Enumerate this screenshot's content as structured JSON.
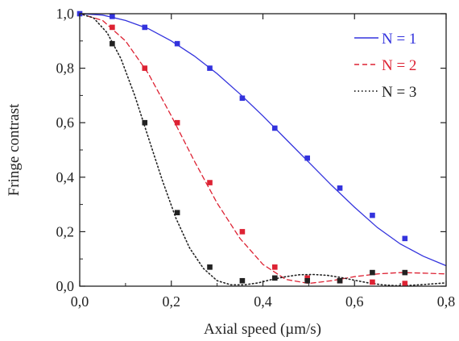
{
  "chart_data": {
    "type": "line",
    "xlabel": "Axial speed (µm/s)",
    "ylabel": "Fringe contrast",
    "xlim": [
      0,
      0.8
    ],
    "ylim": [
      0,
      1.0
    ],
    "x_ticks": [
      "0,0",
      "0,2",
      "0,4",
      "0,6",
      "0,8"
    ],
    "y_ticks": [
      "0,0",
      "0,2",
      "0,4",
      "0,6",
      "0,8",
      "1,0"
    ],
    "grid": false,
    "legend_position": "top-right",
    "series": [
      {
        "name": "N = 1",
        "color": "#3333dd",
        "line_style": "solid",
        "points": [
          [
            0.0,
            1.0
          ],
          [
            0.071,
            0.99
          ],
          [
            0.142,
            0.95
          ],
          [
            0.213,
            0.89
          ],
          [
            0.284,
            0.8
          ],
          [
            0.355,
            0.69
          ],
          [
            0.426,
            0.58
          ],
          [
            0.497,
            0.47
          ],
          [
            0.568,
            0.36
          ],
          [
            0.639,
            0.26
          ],
          [
            0.71,
            0.175
          ]
        ],
        "fit": [
          [
            0.0,
            1.0
          ],
          [
            0.05,
            0.995
          ],
          [
            0.1,
            0.975
          ],
          [
            0.15,
            0.945
          ],
          [
            0.2,
            0.9
          ],
          [
            0.25,
            0.845
          ],
          [
            0.3,
            0.78
          ],
          [
            0.35,
            0.705
          ],
          [
            0.4,
            0.625
          ],
          [
            0.45,
            0.54
          ],
          [
            0.5,
            0.455
          ],
          [
            0.55,
            0.37
          ],
          [
            0.6,
            0.29
          ],
          [
            0.65,
            0.215
          ],
          [
            0.7,
            0.155
          ],
          [
            0.75,
            0.11
          ],
          [
            0.8,
            0.075
          ]
        ]
      },
      {
        "name": "N = 2",
        "color": "#dd2233",
        "line_style": "dashed",
        "points": [
          [
            0.071,
            0.95
          ],
          [
            0.142,
            0.8
          ],
          [
            0.213,
            0.6
          ],
          [
            0.284,
            0.38
          ],
          [
            0.355,
            0.2
          ],
          [
            0.426,
            0.07
          ],
          [
            0.497,
            0.03
          ],
          [
            0.568,
            0.02
          ],
          [
            0.639,
            0.015
          ],
          [
            0.71,
            0.01
          ]
        ],
        "fit": [
          [
            0.0,
            1.0
          ],
          [
            0.05,
            0.975
          ],
          [
            0.1,
            0.9
          ],
          [
            0.15,
            0.78
          ],
          [
            0.2,
            0.625
          ],
          [
            0.25,
            0.46
          ],
          [
            0.3,
            0.305
          ],
          [
            0.35,
            0.175
          ],
          [
            0.4,
            0.08
          ],
          [
            0.45,
            0.025
          ],
          [
            0.5,
            0.01
          ],
          [
            0.55,
            0.02
          ],
          [
            0.6,
            0.035
          ],
          [
            0.65,
            0.045
          ],
          [
            0.7,
            0.05
          ],
          [
            0.75,
            0.048
          ],
          [
            0.8,
            0.045
          ]
        ]
      },
      {
        "name": "N = 3",
        "color": "#222222",
        "line_style": "dotted",
        "points": [
          [
            0.071,
            0.89
          ],
          [
            0.142,
            0.6
          ],
          [
            0.213,
            0.27
          ],
          [
            0.284,
            0.07
          ],
          [
            0.355,
            0.02
          ],
          [
            0.426,
            0.03
          ],
          [
            0.497,
            0.02
          ],
          [
            0.568,
            0.02
          ],
          [
            0.639,
            0.05
          ],
          [
            0.71,
            0.05
          ]
        ],
        "fit": [
          [
            0.0,
            1.0
          ],
          [
            0.03,
            0.985
          ],
          [
            0.06,
            0.93
          ],
          [
            0.09,
            0.835
          ],
          [
            0.12,
            0.7
          ],
          [
            0.15,
            0.545
          ],
          [
            0.18,
            0.39
          ],
          [
            0.21,
            0.25
          ],
          [
            0.24,
            0.14
          ],
          [
            0.27,
            0.065
          ],
          [
            0.3,
            0.02
          ],
          [
            0.33,
            0.005
          ],
          [
            0.36,
            0.005
          ],
          [
            0.39,
            0.012
          ],
          [
            0.42,
            0.025
          ],
          [
            0.45,
            0.035
          ],
          [
            0.48,
            0.042
          ],
          [
            0.51,
            0.043
          ],
          [
            0.54,
            0.04
          ],
          [
            0.57,
            0.032
          ],
          [
            0.6,
            0.022
          ],
          [
            0.63,
            0.012
          ],
          [
            0.66,
            0.005
          ],
          [
            0.69,
            0.002
          ],
          [
            0.72,
            0.003
          ],
          [
            0.75,
            0.006
          ],
          [
            0.8,
            0.012
          ]
        ]
      }
    ]
  }
}
